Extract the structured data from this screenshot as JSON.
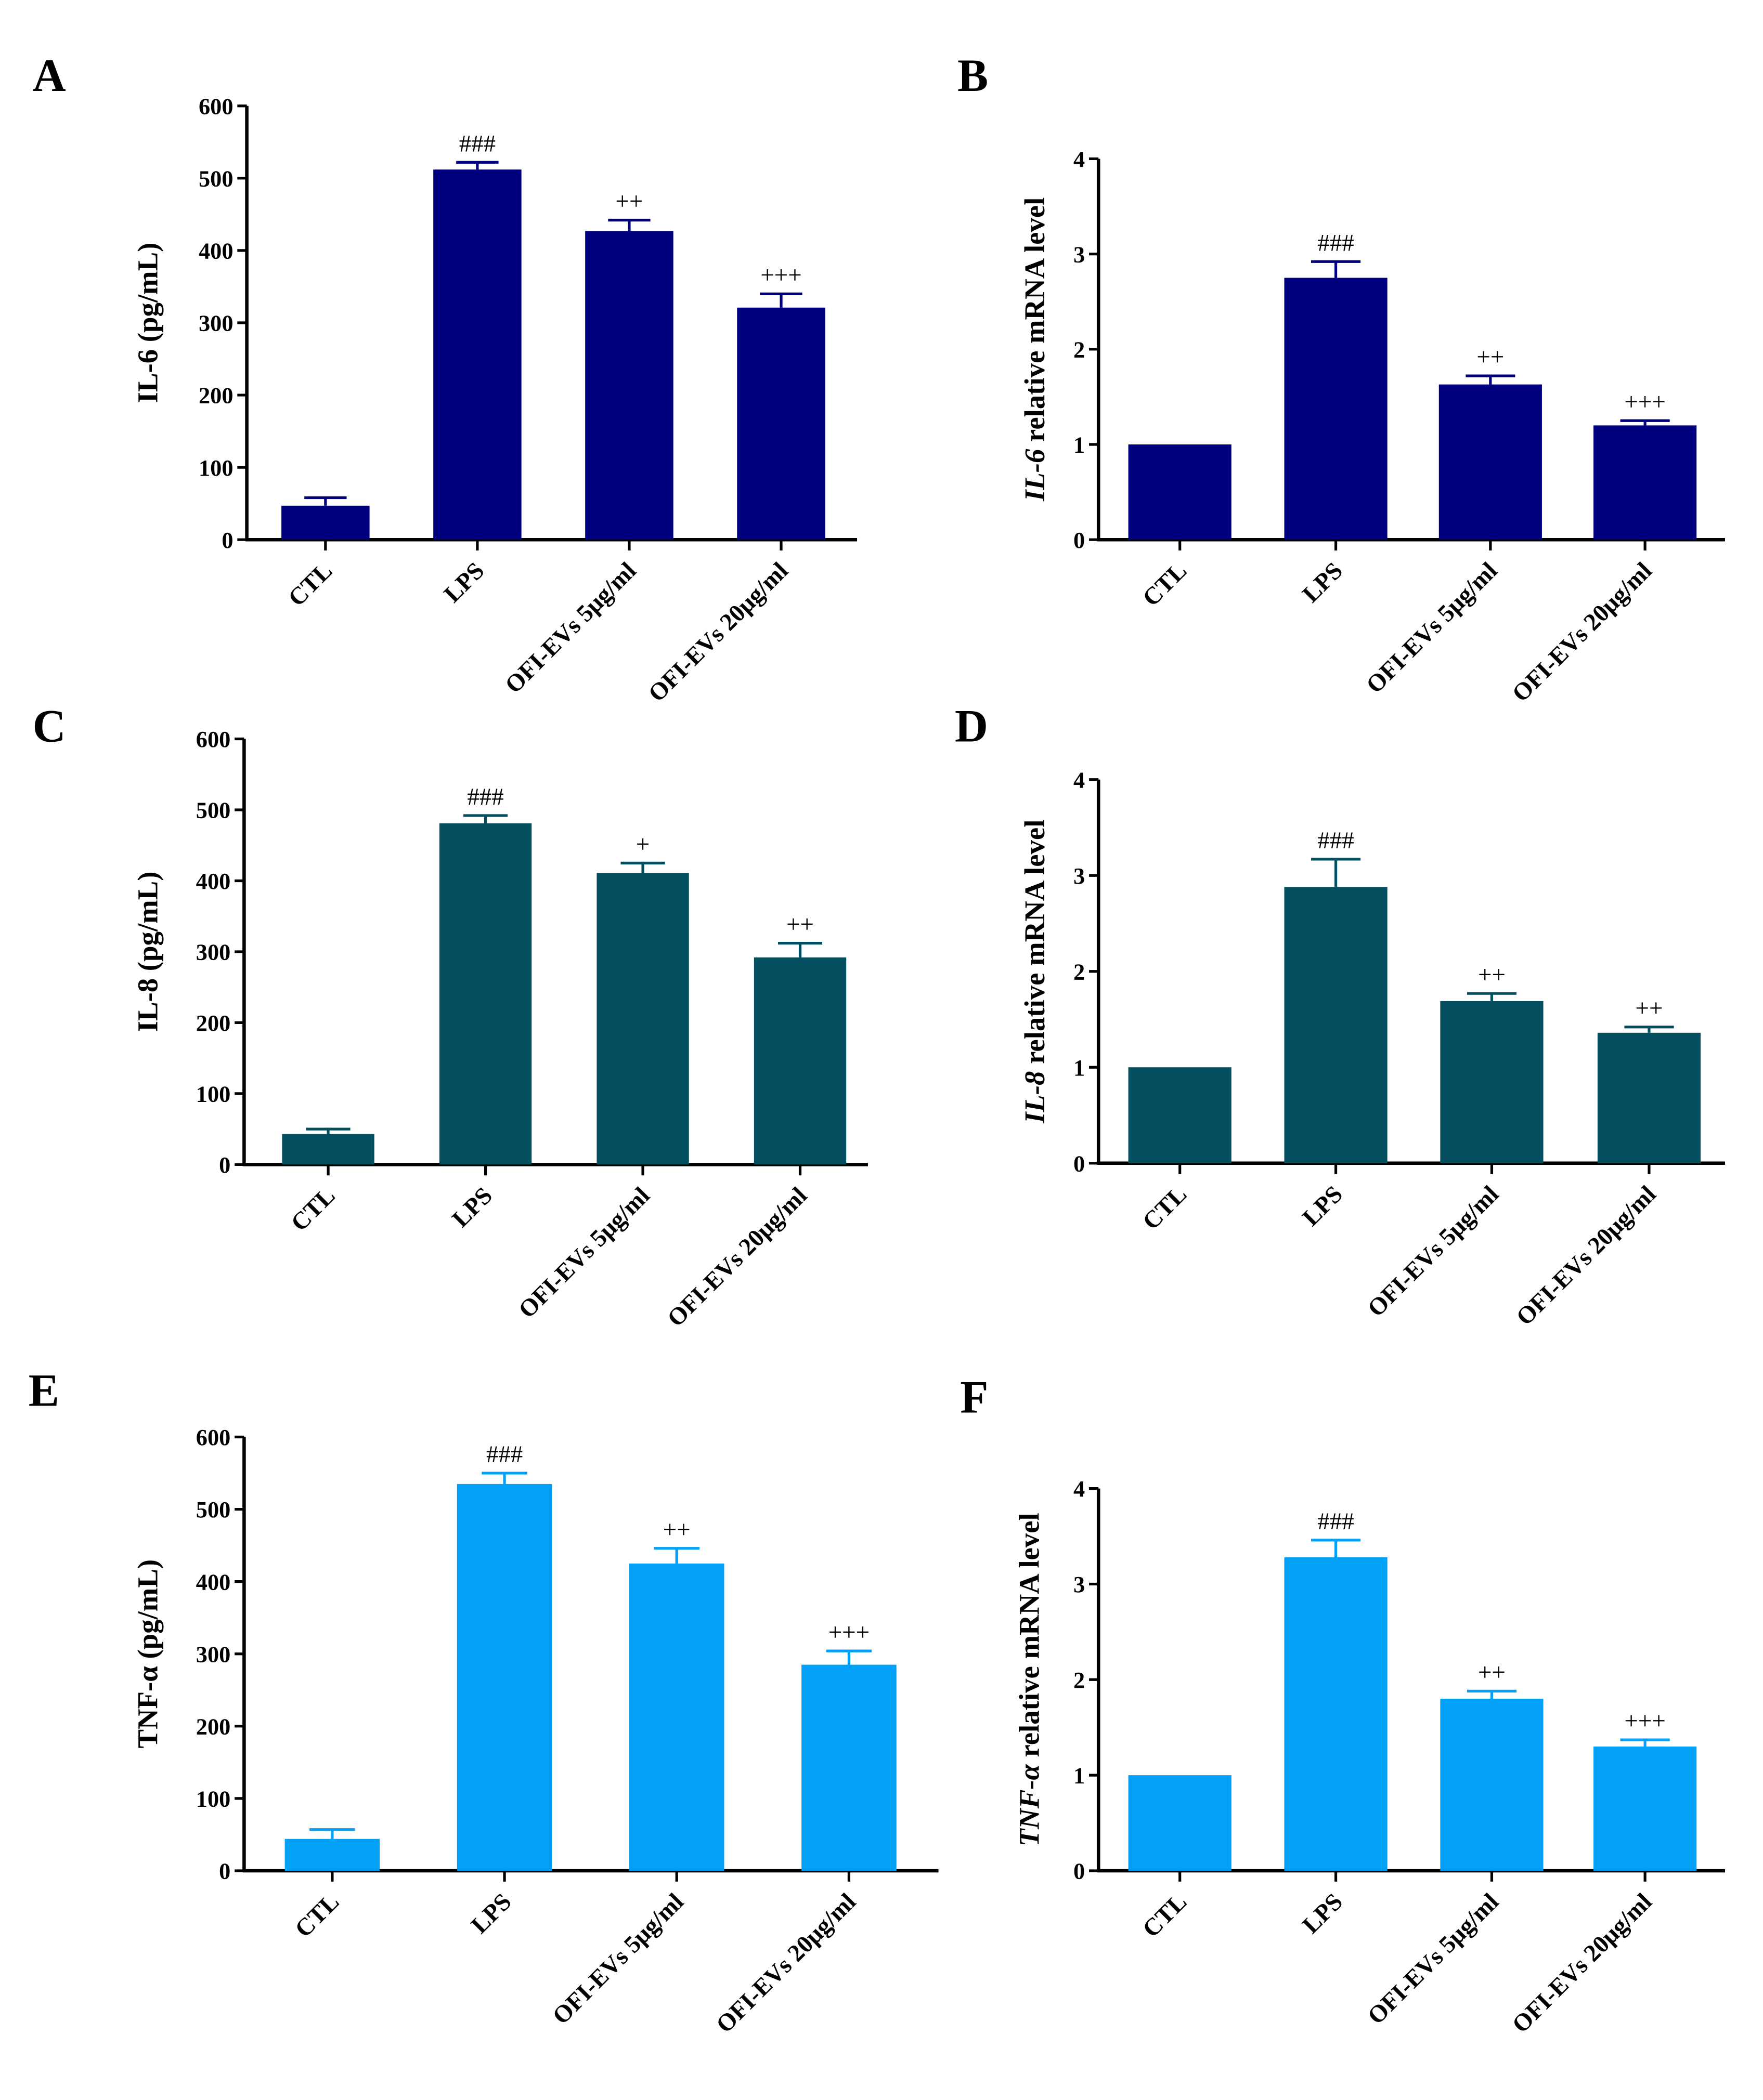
{
  "chart_data": [
    {
      "panel": "A",
      "type": "bar",
      "ylabel": "IL-6 (pg/mL)",
      "ylabel_italic": "",
      "ylabel_rest": "IL-6 (pg/mL)",
      "ylim": [
        0,
        600
      ],
      "yticks": [
        0,
        100,
        200,
        300,
        400,
        500,
        600
      ],
      "categories": [
        "CTL",
        "LPS",
        "OFI-EVs 5μg/ml",
        "OFI-EVs 20μg/ml"
      ],
      "values": [
        47,
        512,
        427,
        321
      ],
      "errors": [
        11,
        10,
        15,
        19
      ],
      "annotations": [
        "",
        "###",
        "++",
        "+++"
      ],
      "color": "#00007f"
    },
    {
      "panel": "B",
      "type": "bar",
      "ylabel": "IL-6 relative mRNA level",
      "ylabel_italic": "IL-6",
      "ylabel_rest": " relative mRNA level",
      "ylim": [
        0,
        4
      ],
      "yticks": [
        0,
        1,
        2,
        3,
        4
      ],
      "categories": [
        "CTL",
        "LPS",
        "OFI-EVs 5μg/ml",
        "OFI-EVs 20μg/ml"
      ],
      "values": [
        1.0,
        2.75,
        1.63,
        1.2
      ],
      "errors": [
        0,
        0.17,
        0.09,
        0.05
      ],
      "annotations": [
        "",
        "###",
        "++",
        "+++"
      ],
      "color": "#00007f"
    },
    {
      "panel": "C",
      "type": "bar",
      "ylabel": "IL-8 (pg/mL)",
      "ylabel_italic": "",
      "ylabel_rest": "IL-8 (pg/mL)",
      "ylim": [
        0,
        600
      ],
      "yticks": [
        0,
        100,
        200,
        300,
        400,
        500,
        600
      ],
      "categories": [
        "CTL",
        "LPS",
        "OFI-EVs 5μg/ml",
        "OFI-EVs 20μg/ml"
      ],
      "values": [
        43,
        481,
        411,
        292
      ],
      "errors": [
        7,
        11,
        14,
        20
      ],
      "annotations": [
        "",
        "###",
        "+",
        "++"
      ],
      "color": "#034e5f"
    },
    {
      "panel": "D",
      "type": "bar",
      "ylabel": "IL-8 relative mRNA level",
      "ylabel_italic": "IL-8",
      "ylabel_rest": " relative mRNA level",
      "ylim": [
        0,
        4
      ],
      "yticks": [
        0,
        1,
        2,
        3,
        4
      ],
      "categories": [
        "CTL",
        "LPS",
        "OFI-EVs 5μg/ml",
        "OFI-EVs 20μg/ml"
      ],
      "values": [
        1.0,
        2.88,
        1.69,
        1.36
      ],
      "errors": [
        0,
        0.29,
        0.08,
        0.06
      ],
      "annotations": [
        "",
        "###",
        "++",
        "++"
      ],
      "color": "#034e5f"
    },
    {
      "panel": "E",
      "type": "bar",
      "ylabel": "TNF-α (pg/mL)",
      "ylabel_italic": "",
      "ylabel_rest": "TNF-α (pg/mL)",
      "ylim": [
        0,
        600
      ],
      "yticks": [
        0,
        100,
        200,
        300,
        400,
        500,
        600
      ],
      "categories": [
        "CTL",
        "LPS",
        "OFI-EVs 5μg/ml",
        "OFI-EVs 20μg/ml"
      ],
      "values": [
        44,
        535,
        425,
        285
      ],
      "errors": [
        13,
        15,
        21,
        19
      ],
      "annotations": [
        "",
        "###",
        "++",
        "+++"
      ],
      "color": "#03a0f7"
    },
    {
      "panel": "F",
      "type": "bar",
      "ylabel": "TNF-α relative mRNA level",
      "ylabel_italic": "TNF-α",
      "ylabel_rest": " relative mRNA level",
      "ylim": [
        0,
        4
      ],
      "yticks": [
        0,
        1,
        2,
        3,
        4
      ],
      "categories": [
        "CTL",
        "LPS",
        "OFI-EVs 5μg/ml",
        "OFI-EVs 20μg/ml"
      ],
      "values": [
        1.0,
        3.28,
        1.8,
        1.3
      ],
      "errors": [
        0,
        0.18,
        0.08,
        0.07
      ],
      "annotations": [
        "",
        "###",
        "++",
        "+++"
      ],
      "color": "#03a0f7"
    }
  ]
}
